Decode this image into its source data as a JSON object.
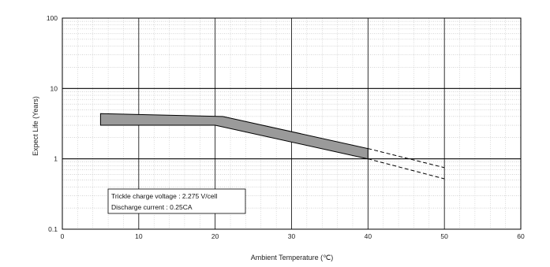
{
  "chart_data": {
    "type": "area",
    "title": "",
    "xlabel": "Ambient Temperature (℃)",
    "ylabel": "Expect Life (Years)",
    "xlim": [
      0,
      60
    ],
    "ylim": [
      0.1,
      100
    ],
    "yscale": "log",
    "x_ticks": [
      "0",
      "10",
      "20",
      "30",
      "40",
      "50",
      "60"
    ],
    "y_ticks": [
      "0.1",
      "1",
      "10",
      "100"
    ],
    "grid": true,
    "band": {
      "upper": [
        [
          5,
          4.4
        ],
        [
          21,
          4.0
        ],
        [
          40,
          1.4
        ]
      ],
      "lower": [
        [
          5,
          3.0
        ],
        [
          20,
          3.0
        ],
        [
          40,
          1.0
        ]
      ],
      "fill_color": "#9a9a9a"
    },
    "dashed_extension": {
      "upper": [
        [
          40,
          1.4
        ],
        [
          50,
          0.75
        ]
      ],
      "lower": [
        [
          40,
          1.0
        ],
        [
          50,
          0.52
        ]
      ]
    },
    "annotation": [
      "Trickle charge voltage : 2.275 V/cell",
      "Discharge current : 0.25CA"
    ]
  }
}
